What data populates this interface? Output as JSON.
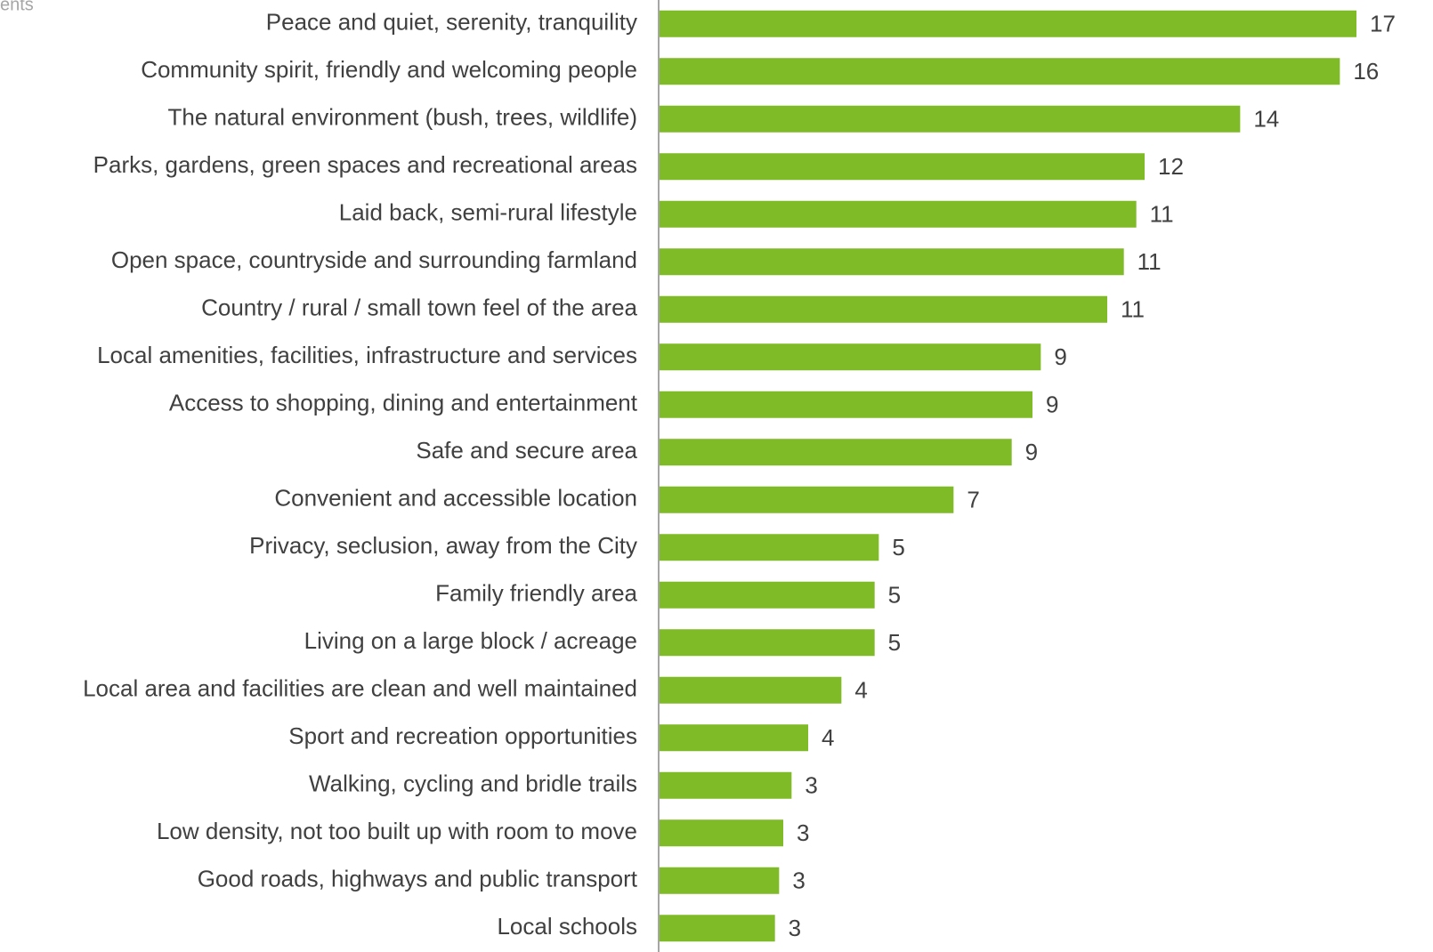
{
  "chart_data": {
    "type": "barh",
    "annotation": "ents",
    "categories": [
      "Peace and quiet, serenity, tranquility",
      "Community spirit, friendly and welcoming people",
      "The natural environment (bush, trees, wildlife)",
      "Parks, gardens, green spaces and recreational areas",
      "Laid back, semi-rural lifestyle",
      "Open space, countryside and surrounding farmland",
      "Country / rural / small town feel of the area",
      "Local amenities, facilities, infrastructure and services",
      "Access to shopping, dining and entertainment",
      "Safe and secure area",
      "Convenient and accessible location",
      "Privacy, seclusion, away from the City",
      "Family friendly area",
      "Living on a large block / acreage",
      "Local area and facilities are clean and well maintained",
      "Sport and recreation opportunities",
      "Walking, cycling and bridle trails",
      "Low density, not too built up with room to move",
      "Good roads, highways and public transport",
      "Local schools"
    ],
    "values": [
      16.8,
      16.4,
      14.0,
      11.7,
      11.5,
      11.2,
      10.8,
      9.2,
      9.0,
      8.5,
      7.1,
      5.3,
      5.2,
      5.2,
      4.4,
      3.6,
      3.2,
      3.0,
      2.9,
      2.8
    ],
    "value_labels": [
      "17",
      "16",
      "14",
      "12",
      "11",
      "11",
      "11",
      "9",
      "9",
      "9",
      "7",
      "5",
      "5",
      "5",
      "4",
      "4",
      "3",
      "3",
      "3",
      "3"
    ],
    "color": "#7fba27",
    "xlim": [
      0,
      18
    ]
  }
}
